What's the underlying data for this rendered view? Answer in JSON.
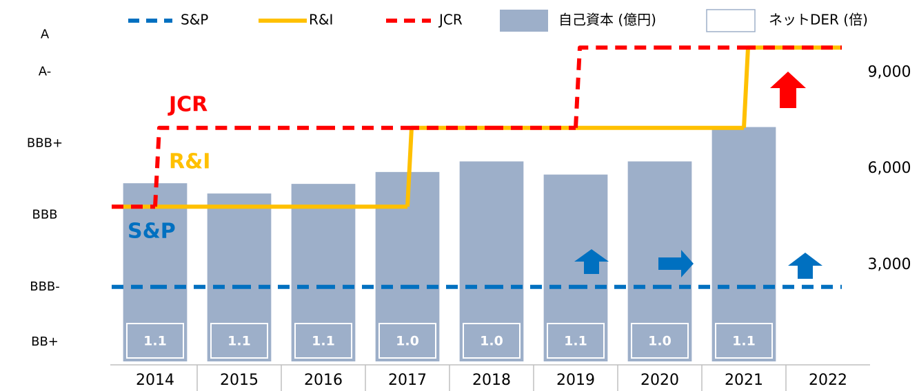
{
  "chart_data": {
    "type": "bar",
    "categories": [
      "2014",
      "2015",
      "2016",
      "2017",
      "2018",
      "2019",
      "2020",
      "2021",
      "2022"
    ],
    "ylim": [
      0.96,
      5.62
    ],
    "yticks": [
      {
        "value": 1.23,
        "label": "BB+"
      },
      {
        "value": 2,
        "label": "BBB-"
      },
      {
        "value": 3,
        "label": "BBB"
      },
      {
        "value": 4,
        "label": "BBB+"
      },
      {
        "value": 5,
        "label": "A-"
      },
      {
        "value": 5.52,
        "label": "A"
      }
    ],
    "y2lim": [
      0,
      10400
    ],
    "y2ticks": [
      {
        "value": 3000,
        "label": "3,000"
      },
      {
        "value": 6000,
        "label": "6,000"
      },
      {
        "value": 9000,
        "label": "9,000"
      }
    ],
    "series": [
      {
        "name": "自己資本 (億円)",
        "type": "bar",
        "axis": "y2",
        "color": "#9dafc9",
        "values": [
          5550,
          5230,
          5530,
          5900,
          6230,
          5820,
          6230,
          7300,
          null
        ]
      },
      {
        "name": "ネットDER (倍)",
        "type": "label",
        "color": "#ffffff",
        "values": [
          1.1,
          1.1,
          1.1,
          1.0,
          1.0,
          1.1,
          1.0,
          1.1,
          null
        ],
        "value_labels": [
          "1.1",
          "1.1",
          "1.1",
          "1.0",
          "1.0",
          "1.1",
          "1.0",
          "1.1",
          null
        ]
      },
      {
        "name": "S&P",
        "type": "line",
        "dash": true,
        "color": "#0070c0",
        "values": [
          2,
          2,
          2,
          2,
          2,
          2,
          2,
          2,
          2
        ]
      },
      {
        "name": "R&I",
        "type": "line",
        "dash": false,
        "color": "#ffc000",
        "values": [
          3.12,
          3.12,
          3.12,
          3.12,
          4.22,
          4.22,
          4.22,
          4.22,
          5.34
        ]
      },
      {
        "name": "JCR",
        "type": "line",
        "dash": true,
        "color": "#ff0000",
        "values": [
          3.12,
          4.22,
          4.22,
          4.22,
          4.22,
          4.22,
          5.34,
          5.34,
          5.34
        ]
      }
    ]
  }
}
